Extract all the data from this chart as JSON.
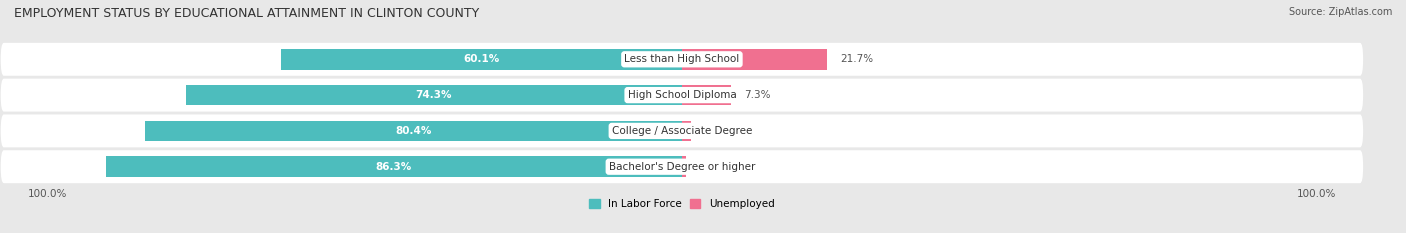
{
  "title": "EMPLOYMENT STATUS BY EDUCATIONAL ATTAINMENT IN CLINTON COUNTY",
  "source": "Source: ZipAtlas.com",
  "categories": [
    "Less than High School",
    "High School Diploma",
    "College / Associate Degree",
    "Bachelor's Degree or higher"
  ],
  "in_labor_force": [
    60.1,
    74.3,
    80.4,
    86.3
  ],
  "unemployed": [
    21.7,
    7.3,
    1.4,
    0.6
  ],
  "bar_color_labor": "#4DBDBD",
  "bar_color_unemployed": "#F07090",
  "bg_color": "#e8e8e8",
  "legend_labor": "In Labor Force",
  "legend_unemployed": "Unemployed",
  "x_left_label": "100.0%",
  "x_right_label": "100.0%",
  "title_fontsize": 9,
  "source_fontsize": 7,
  "bar_fontsize": 7.5,
  "label_fontsize": 7.5,
  "axis_label_fontsize": 7.5,
  "max_val": 100.0,
  "bar_height": 0.58
}
